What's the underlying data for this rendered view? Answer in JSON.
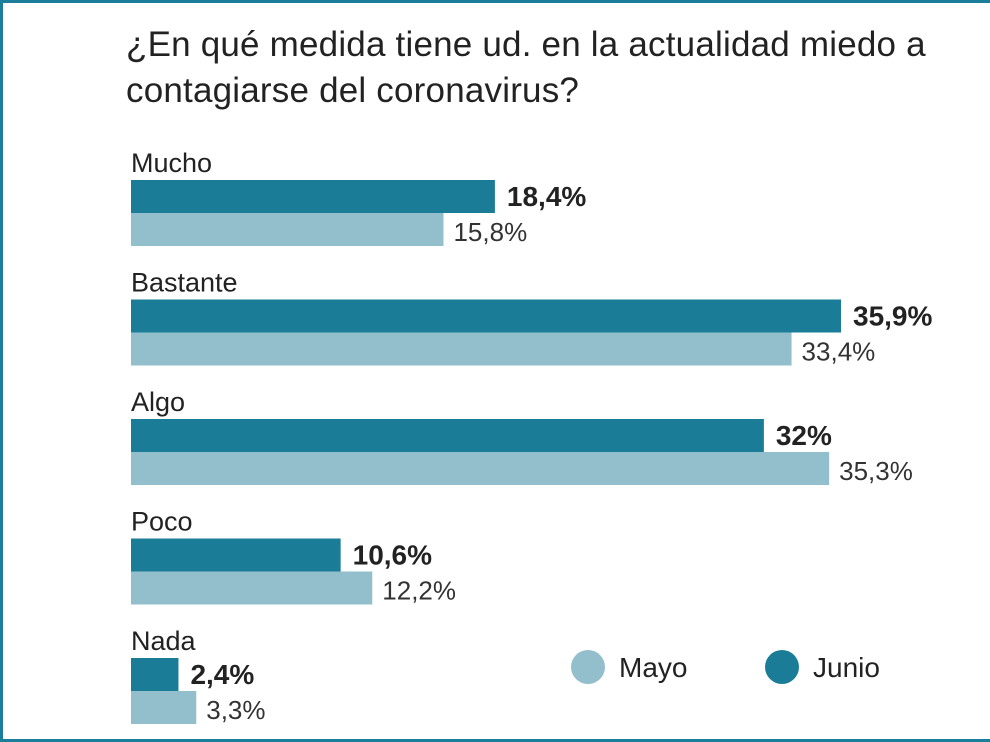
{
  "title": "¿En qué medida tiene ud. en la actualidad miedo a contagiarse del coronavirus?",
  "colors": {
    "junio": "#1a7c96",
    "mayo": "#93bfcd",
    "frame": "#1b7f9c"
  },
  "legend": {
    "position": "bottom-right",
    "items": [
      {
        "label": "Mayo",
        "color": "#93bfcd"
      },
      {
        "label": "Junio",
        "color": "#1a7c96"
      }
    ]
  },
  "chart_data": {
    "type": "bar",
    "orientation": "horizontal",
    "title": "¿En qué medida tiene ud. en la actualidad miedo a contagiarse del coronavirus?",
    "categories": [
      "Mucho",
      "Bastante",
      "Algo",
      "Poco",
      "Nada"
    ],
    "series": [
      {
        "name": "Junio",
        "values": [
          18.4,
          35.9,
          32,
          10.6,
          2.4
        ],
        "labels": [
          "18,4%",
          "35,9%",
          "32%",
          "10,6%",
          "2,4%"
        ]
      },
      {
        "name": "Mayo",
        "values": [
          15.8,
          33.4,
          35.3,
          12.2,
          3.3
        ],
        "labels": [
          "15,8%",
          "33,4%",
          "35,3%",
          "12,2%",
          "3,3%"
        ]
      }
    ],
    "xlim": [
      0,
      35.9
    ],
    "grid": false
  }
}
